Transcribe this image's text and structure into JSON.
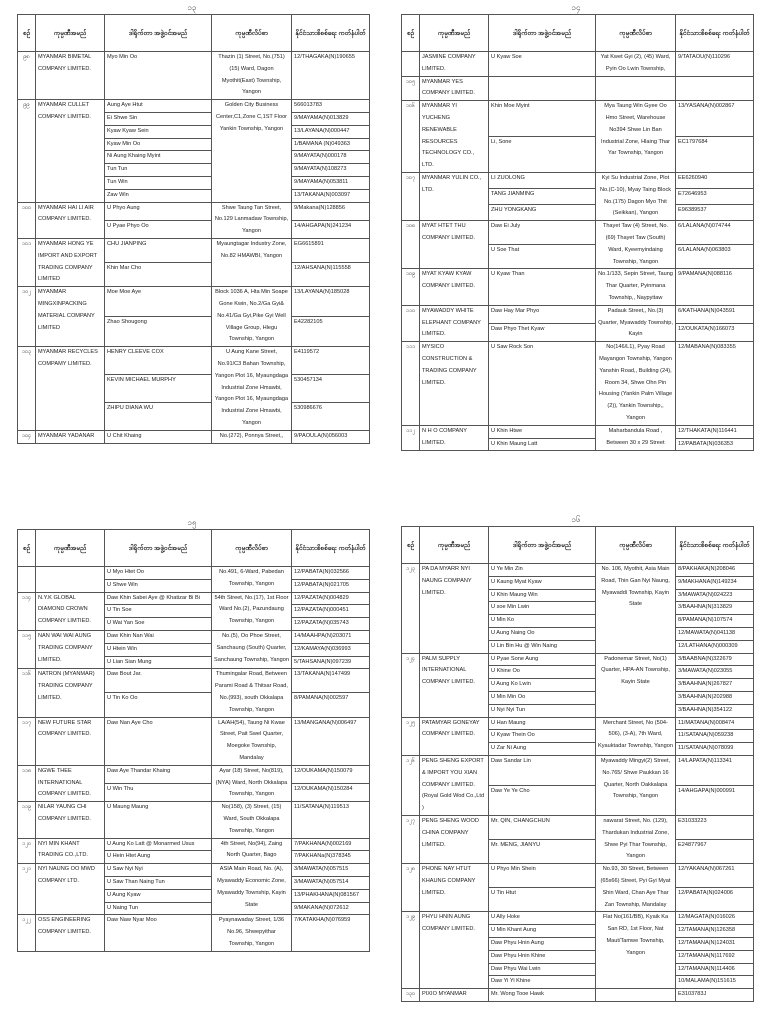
{
  "headers": [
    "စဉ်",
    "ကုမ္ပဏီအမည်",
    "ဒါရိုက်တာ အဖွဲ့ဝင်အမည်",
    "ကုမ္ပဏီလိပ်စာ",
    "နိုင်ငံသားစိစစ်ရေး ကတ်နံပါတ်"
  ],
  "pages": [
    {
      "page_number": "၁၃",
      "rows": [
        {
          "no": "၉၈",
          "company": "MYANMAR BIMETAL COMPANY LIMITED.",
          "address": "Thazin (1) Street, No.(751)(15) Ward, Dagon Myothit(East) Township, Yangon",
          "directors": [
            {
              "name": "Myo Min Oo",
              "nrc": "12/THAGAKA(N)190655"
            }
          ]
        },
        {
          "no": "၉၉",
          "company": "MYANMAR CULLET COMPANY LIMITED.",
          "address": "Golden City Business Center,C1,Zone C,1ST Floor Yankin Township, Yangon",
          "directors": [
            {
              "name": "Aung Aye Htut",
              "nrc": "566013783"
            },
            {
              "name": "Ei Shwe Sin",
              "nrc": "9/MAYAMA(N)013829"
            },
            {
              "name": "Kyaw Kyaw Sein",
              "nrc": "13/LAYANA(N)000447"
            },
            {
              "name": "Kyaw Min Oo",
              "nrc": "1/BAMANA (N)049363"
            },
            {
              "name": "Ni Aung Khaing Myint",
              "nrc": "9/MAYATA(N)000178"
            },
            {
              "name": "Tun Tun",
              "nrc": "9/MAYATA(N)108273"
            },
            {
              "name": "Tun Win",
              "nrc": "9/MAYAMA(N)053811"
            },
            {
              "name": "Zaw Win",
              "nrc": "13/TAKANA(N)003097"
            }
          ]
        },
        {
          "no": "၁၀၀",
          "company": "MYANMAR HAI LI AIR COMPANY LIMITED.",
          "address": "Shwe Taung Tan Street, No.129 Lanmadaw Township, Yangon",
          "directors": [
            {
              "name": "U Phyo Aung",
              "nrc": "9/Makana(N)128856"
            },
            {
              "name": "U Pyae Phyo Oo",
              "nrc": "14/AHGAPA(N)241234"
            }
          ]
        },
        {
          "no": "၁၀၁",
          "company": "MYANMAR HONG YE IMPORT AND EXPORT TRADING COMPANY LIMITED",
          "address": "Myaungtagar Industry Zone, No.82 HMAWBI, Yangon",
          "directors": [
            {
              "name": "CHU JIANPING",
              "nrc": "EG6615891"
            },
            {
              "name": "Khin Mar Cho",
              "nrc": "12/AHSANA(N)115558"
            }
          ]
        },
        {
          "no": "၁၀၂",
          "company": "MYANMAR MINGXINPACKING MATERIAL COMPANY LIMITED",
          "address": "Block 1036 A, Hta Min Soape Gone Kwin, No.2/Ga Gyi& No.41/Ga Gyi,Pike Gyi Well Village Group, Hlegu Township, Yangon",
          "directors": [
            {
              "name": "Moe Moe Aye",
              "nrc": "13/LAYANA(N)185028"
            },
            {
              "name": "Zhao Shougong",
              "nrc": "E42282105"
            }
          ]
        },
        {
          "no": "၁၀၃",
          "company": "MYANMAR RECYCLES COMPAMY LIMITED.",
          "address": "U Aung Kane Street, No.91/C3 Bahan Township, Yangon Plot 16, Myaungdaga Industrial Zone Hmawbi, Yangon Plot 16, Myaungdaga Industrial Zone Hmawbi, Yangon",
          "directors": [
            {
              "name": "HENRY CLEEVE COX",
              "nrc": "E4119572"
            },
            {
              "name": "KEVIN MICHAEL MURPHY",
              "nrc": "530457134"
            },
            {
              "name": "ZHIPU DIANA WU",
              "nrc": "530986676"
            }
          ]
        },
        {
          "no": "၁၀၄",
          "company": "MYANMAR YADANAR",
          "address": "No.(272), Ponnya Street,,",
          "directors": [
            {
              "name": "U Chit Khaing",
              "nrc": "9/PAOULA(N)056003"
            }
          ]
        }
      ]
    },
    {
      "page_number": "၁၄",
      "rows": [
        {
          "no": "",
          "company": "JASMINE COMPANY LIMITED.",
          "address": "Yat Kwet Gyi (2), (45) Ward, Pyin Oo Lwin Township,",
          "directors": [
            {
              "name": "U Kyaw Soe",
              "nrc": "9/TATAOU(N)110296"
            }
          ]
        },
        {
          "no": "၁၀၅",
          "company": "MYANMAR YES COMPANY LIMITED.",
          "address": "",
          "directors": [
            {
              "name": "",
              "nrc": ""
            }
          ]
        },
        {
          "no": "၁၀၆",
          "company": "MYANMAR YI YUCHENG RENEWABLE RESOURCES TECHNOLOGY CO., LTD.",
          "address": "Mya Taung Win Gyee Oo Hmo Street, Warehouse No394 Shwe Lin Ban Industrial Zone, Hlaing Thar Yar Township, Yangon",
          "directors": [
            {
              "name": "Khin Moe  Myint",
              "nrc": "13/YASANA(N)002867"
            },
            {
              "name": "Li, Sone",
              "nrc": "EC1797684"
            }
          ]
        },
        {
          "no": "၁၀၇",
          "company": "MYANMAR YULIN CO., LTD.",
          "address": "Kyi Su Industrial Zone, Plot No.(C-10), Myay Taing Block No.(175) Dagon Myo Thit (Seikkan), Yangon",
          "directors": [
            {
              "name": "LI ZUOLONG",
              "nrc": "EE6260940"
            },
            {
              "name": "TANG  JIANMING",
              "nrc": "E72646953"
            },
            {
              "name": "ZHU YONGKANG",
              "nrc": "E96389537"
            }
          ]
        },
        {
          "no": "၁၀၈",
          "company": "MYAT HTET THU COMPANY LIMITED.",
          "address": "Thayet Taw (4) Street, No.(69) Thayet Taw (South) Ward, Kyeemyindaing Township, Yangon",
          "directors": [
            {
              "name": "Daw Ei July",
              "nrc": "6/LALANA(N)074744"
            },
            {
              "name": "U Soe That",
              "nrc": "6/LALANA(N)063803"
            }
          ]
        },
        {
          "no": "၁၀၉",
          "company": "MYAT KYAW KYAW COMPANY LIMITED.",
          "address": "No.1/133, Sepin Street, Taung Thar Quarter, Pyinmana Township,, Naypyitaw",
          "directors": [
            {
              "name": "U Kyaw Than",
              "nrc": "9/PAMANA(N)088116"
            }
          ]
        },
        {
          "no": "၁၁၀",
          "company": "MYAWADDY WHITE ELEPHANT COMPANY LIMITED.",
          "address": "Padauk Street,, No.(3) Quarter, Myawaddy Township, Kayin",
          "directors": [
            {
              "name": "Daw Hay Mar Phyo",
              "nrc": "6/KATHANA(N)043591"
            },
            {
              "name": "Daw Phyo Thet Kyaw",
              "nrc": "12/OUKATA(N)166073"
            }
          ]
        },
        {
          "no": "၁၁၁",
          "company": "MYSICO CONSTRUCTION & TRADING COMPANY LIMITED.",
          "address": "No(146/L1), Pyay Road Mayangon Township, Yangon Yanshin Road,, Building (24), Room 34, Shwe Ohn Pin Housing (Yankin Palm Village (2)), Yankin Township,, Yangon",
          "directors": [
            {
              "name": "U Saw Rock Son",
              "nrc": "12/MABANA(N)083355"
            }
          ]
        },
        {
          "no": "၁၁၂",
          "company": "N H O COMPANY LIMITED.",
          "address": "Maharbandula Road , Between 30 x 29 Street",
          "directors": [
            {
              "name": "U Khin Htwe",
              "nrc": "12/THAKATA(N)116441"
            },
            {
              "name": "U Khin Maung Latt",
              "nrc": "12/PABATA(N)036353"
            }
          ]
        }
      ]
    },
    {
      "page_number": "၁၅",
      "rows": [
        {
          "no": "",
          "company": "",
          "address": "No.491, 6-Ward, Pabedan Township, Yangon",
          "directors": [
            {
              "name": "U Myo Htet Oo",
              "nrc": "12/PABATA(N)032566"
            },
            {
              "name": "U Shwe Win",
              "nrc": "12/PABATA(N)021705"
            }
          ]
        },
        {
          "no": "၁၁၄",
          "company": "N.Y.K GLOBAL DIAMOND CROWN COMPANY LIMTIED.",
          "address": "54th Street, No.(17), 1st Floor Ward No.(2), Pazundaung Township, Yangon",
          "directors": [
            {
              "name": "Daw Khin Sabei Aye @ Khatizar Bi Bi",
              "nrc": "12/PAZATA(N)004829"
            },
            {
              "name": "U Tin Soe",
              "nrc": "12/PAZATA(N)000451"
            },
            {
              "name": "U Wai Yan Soe",
              "nrc": "12/PAZATA(N)035743"
            }
          ]
        },
        {
          "no": "၁၁၅",
          "company": "NAN WAI WAI AUNG TRADING COMPANY LIMITED.",
          "address": "No.(5), Oo Phoe Street, Sanchaung (South) Quarter, Sanchaung Township, Yangon",
          "directors": [
            {
              "name": "Daw Khin Nan Wai",
              "nrc": "14/MAAHPA(N)203071"
            },
            {
              "name": "U Htein Win",
              "nrc": "12/KAMAYA(N)036993"
            },
            {
              "name": "U Lian Sian Mung",
              "nrc": "5/TAHSANA(N)097239"
            }
          ]
        },
        {
          "no": "၁၁၆",
          "company": "NATRON (MYANMAR) TRADING COMPANY LIMITED.",
          "address": "Thumingalar Road, Between Parami Road & Thitsar Road, No.(993), south Okkalapa Township, Yangon",
          "directors": [
            {
              "name": "Daw Bout Jar.",
              "nrc": "13/TAKANA(N)147499"
            },
            {
              "name": "U Tin Ko Oo",
              "nrc": "8/PAMANA(N)002597"
            }
          ]
        },
        {
          "no": "၁၁၇",
          "company": "NEW FUTURE STAR COMPANY LIMITED.",
          "address": "LA/AH(54), Taung Ni Kwae Street, Pait Swel Quarter, Moegoke Township, Mandalay",
          "directors": [
            {
              "name": "Daw Nan Aye Cho",
              "nrc": "13/MANGANA(N)006497"
            }
          ]
        },
        {
          "no": "၁၁၈",
          "company": "NGWE THEE INTERNATIONAL COMPANY LIMITED.",
          "address": "Ayar (18) Street,  No(819), (NYA) Ward, North Okkalapa Township, Yangon",
          "directors": [
            {
              "name": "Daw Aye Thandar Khaing",
              "nrc": "12/OUKAMA(N)150079"
            },
            {
              "name": "U Win Thu",
              "nrc": "12/OUKAMA(N)150284"
            }
          ]
        },
        {
          "no": "၁၁၉",
          "company": "NILAR YAUNG CHI COMPANY LIMITED.",
          "address": "No(158), (3) Street, (15) Ward, South Okkalapa Township, Yangon",
          "directors": [
            {
              "name": "U Maung Maung",
              "nrc": "11/SATANA(N)119513"
            }
          ]
        },
        {
          "no": "၁၂၀",
          "company": "NYI MIN KHANT TRADING CO.,LTD.",
          "address": "4th Street,  No(94), Zaing North Quarter, Bago",
          "directors": [
            {
              "name": "U Aung Ko Latt @ Monarmed Usus",
              "nrc": "7/PAKHANA(N)002169"
            },
            {
              "name": "U Hein Htet Aung",
              "nrc": "7/PAKHANa(N)378345"
            }
          ]
        },
        {
          "no": "၁၂၁",
          "company": "NYI NAUNG OO MWD COMPANY LTD.",
          "address": "ASIA Main Road, No. (A), Myawaddy Economic Zone, Myawaddy Township, Kayin State",
          "directors": [
            {
              "name": "U Saw Nyi Nyi",
              "nrc": "3/MAWATA(N)057515"
            },
            {
              "name": "U Saw Than Naing Tun",
              "nrc": "3/MAWATA(N)057514"
            },
            {
              "name": "U Aung Kyaw",
              "nrc": "13/PHAKHANA(N)081567"
            },
            {
              "name": "U Naing Tun",
              "nrc": "9/MAKANA(N)072612"
            }
          ]
        },
        {
          "no": "၁၂၂",
          "company": "OSS ENGINEERING COMPANY LIMITED.",
          "address": "Pyaynawaday Street, 1/36 No.96, Shwepyithar Township, Yangon",
          "directors": [
            {
              "name": "Daw Naw Nyar Moo",
              "nrc": "7/KATAKHA(N)076959"
            }
          ]
        }
      ]
    },
    {
      "page_number": "၁၆",
      "rows": [
        {
          "no": "၁၂၃",
          "company": "PA DA MYARR NYI NAUNG COMPANY LIMITED.",
          "address": "No. 106, Myothit, Asia Main Road, Thin Gan Nyi Naung, Myawaddi Township, Kayin State",
          "directors": [
            {
              "name": "U Ye Min Zin",
              "nrc": "8/PAKHAKA(N)208046"
            },
            {
              "name": "U Kaung Myat Kyaw",
              "nrc": "9/MAKHANA(N)149234"
            },
            {
              "name": "U Khin Maung Win",
              "nrc": "3/MAWATA(N)024223"
            },
            {
              "name": "U soe Min Lwin",
              "nrc": "3/BAAHNA(N)313829"
            },
            {
              "name": "U Min Ko",
              "nrc": "8/PAMANA(N)107574"
            },
            {
              "name": "U Aung Naing Oo",
              "nrc": "12/MAWATA(N)041138"
            },
            {
              "name": "U Lin Bin Hu @ Win Naing",
              "nrc": "12/LATHANA(N)000309"
            }
          ]
        },
        {
          "no": "၁၂၄",
          "company": "PALM SUPPLY INTERNATIONAL COMPANY LIMITED.",
          "address": "Padonemar Street,  No(1) Quarter, HPA-AN Township, Kayin State",
          "directors": [
            {
              "name": "U Pyae Sone Aung",
              "nrc": "3/BAABNA(N)322679"
            },
            {
              "name": "U Khine Oo",
              "nrc": "3/MAWATA(N)023055"
            },
            {
              "name": "U Aung Ko Lwin",
              "nrc": "3/BAAHNA(N)267827"
            },
            {
              "name": "U Min Min Oo",
              "nrc": "3/BAAHNA(N)202988"
            },
            {
              "name": "U Nyi Nyi Tun",
              "nrc": "3/BAAHNA(N)354122"
            }
          ]
        },
        {
          "no": "၁၂၅",
          "company": "PATAMYAR GONEYAY COMPANY LIMITED.",
          "address": "Merchant Street, No (504-506), (3-A), 7th Ward, Kyauktadar Township, Yangon",
          "directors": [
            {
              "name": "U Han Maung",
              "nrc": "11/MATANA(N)008474"
            },
            {
              "name": "U Kyaw Thein Oo",
              "nrc": "11/SATANA(N)059238"
            },
            {
              "name": "U Zar Ni Aung",
              "nrc": "11/SATANA(N)078099"
            }
          ]
        },
        {
          "no": "၁၂၆",
          "company": "PENG SHENG EXPORT & IMPORT YOU XIAN COMPANY LIMITED.(Royal Gold Wod Co.,Ltd )",
          "address": "Myawaddy Mingyi(2) Street, No.765/ Shwe Paukkan 16 Quarter, North Oakkalapa Township, Yangon",
          "directors": [
            {
              "name": "Daw Sandar Lin",
              "nrc": "14/LAPATA(N)113341"
            },
            {
              "name": "Daw Ye Ye Cho",
              "nrc": "14/AHGAPA(N)000991"
            }
          ]
        },
        {
          "no": "၁၂၇",
          "company": "PENG SHENG WOOD CHINA COMPANY LIMITED.",
          "address": "nawarat Street, No. (129), Thardukan Industrial Zone, Shwe Pyi Thar Township, Yangon",
          "directors": [
            {
              "name": "Mr. QIN, CHANGCHUN",
              "nrc": "E31033223"
            },
            {
              "name": "Mr. MENG, JIANYU",
              "nrc": "E24877967"
            }
          ]
        },
        {
          "no": "၁၂၈",
          "company": "PHONE NAY HTUT KHAUNG COMPANY LIMITED.",
          "address": "No.93, 30 Street, Between (65x66) Street, Pyi Gyi Myat Shin Ward, Chan Aye Thar Zan Township, Mandalay",
          "directors": [
            {
              "name": "U Phyo Min Shein",
              "nrc": "12/YAKANA(N)067261"
            },
            {
              "name": "U Tin Htut",
              "nrc": "12/PABATA(N)024006"
            }
          ]
        },
        {
          "no": "၁၂၉",
          "company": "PHYU HNIN AUNG COMPANY LIMITED.",
          "address": "Flat No(161/BB), Kyaik Ka San RD, 1st Floor, Nat Maut/Tamwe Township, Yangon",
          "directors": [
            {
              "name": "U Ally Hoke",
              "nrc": "12/MAGATA(N)016026"
            },
            {
              "name": "U Min Khant Aung",
              "nrc": "12/TAMANA(N)126358"
            },
            {
              "name": "Daw Phyu Hnin Aung",
              "nrc": "12/TAMANA(N)124031"
            },
            {
              "name": "Daw Phyu Hnin Khine",
              "nrc": "12/TAMANA(N)117692"
            },
            {
              "name": "Daw Phyu Wai Lwin",
              "nrc": "12/TAMANA(N)114406"
            },
            {
              "name": "Daw Yi Yi Khine",
              "nrc": "10/MALAMA(N)151615"
            }
          ]
        },
        {
          "no": "၁၃၀",
          "company": "PIXIO MYANMAR",
          "address": "",
          "directors": [
            {
              "name": "Mr. Wong Tooe Hawk",
              "nrc": "E3103783J"
            }
          ]
        }
      ]
    }
  ]
}
